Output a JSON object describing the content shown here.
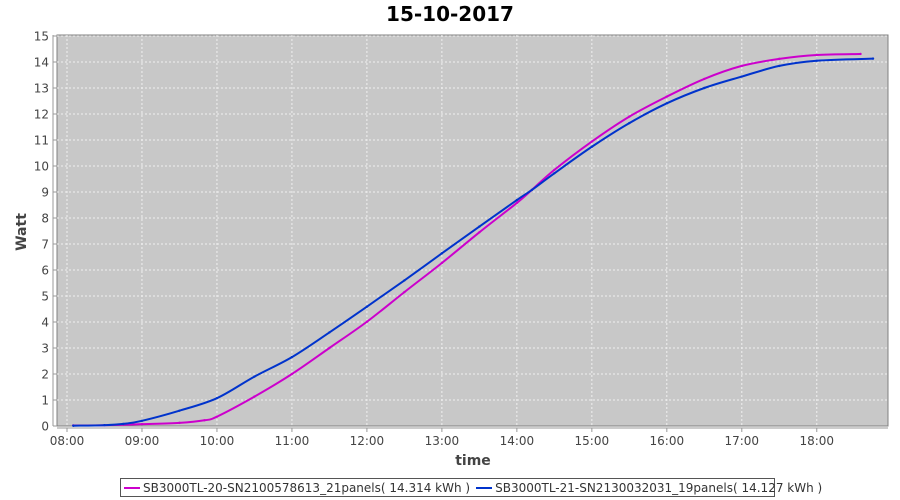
{
  "chart_data": {
    "type": "line",
    "title": "15-10-2017",
    "xlabel": "time",
    "ylabel": "Watt",
    "xlim": [
      "07:52",
      "18:57"
    ],
    "ylim": [
      0,
      15
    ],
    "x_ticks": [
      "08:00",
      "09:00",
      "10:00",
      "11:00",
      "12:00",
      "13:00",
      "14:00",
      "15:00",
      "16:00",
      "17:00",
      "18:00"
    ],
    "y_ticks": [
      0,
      1,
      2,
      3,
      4,
      5,
      6,
      7,
      8,
      9,
      10,
      11,
      12,
      13,
      14,
      15
    ],
    "grid": true,
    "legend_position": "bottom",
    "background": "#c8c8c8",
    "series": [
      {
        "name": "SB3000TL-20-SN2100578613_21panels( 14.314 kWh )",
        "color": "#cc00cc",
        "points": [
          [
            "08:05",
            0.02
          ],
          [
            "08:30",
            0.03
          ],
          [
            "09:00",
            0.07
          ],
          [
            "09:30",
            0.12
          ],
          [
            "09:50",
            0.22
          ],
          [
            "10:00",
            0.36
          ],
          [
            "10:30",
            1.13
          ],
          [
            "11:00",
            2.0
          ],
          [
            "11:30",
            3.0
          ],
          [
            "12:00",
            4.01
          ],
          [
            "12:30",
            5.15
          ],
          [
            "13:00",
            6.27
          ],
          [
            "13:30",
            7.45
          ],
          [
            "14:00",
            8.58
          ],
          [
            "14:12",
            9.08
          ],
          [
            "14:30",
            9.85
          ],
          [
            "15:00",
            10.94
          ],
          [
            "15:30",
            11.9
          ],
          [
            "16:00",
            12.67
          ],
          [
            "16:30",
            13.35
          ],
          [
            "17:00",
            13.85
          ],
          [
            "17:30",
            14.12
          ],
          [
            "18:00",
            14.27
          ],
          [
            "18:35",
            14.31
          ]
        ]
      },
      {
        "name": "SB3000TL-21-SN2130032031_19panels( 14.127 kWh )",
        "color": "#0033cc",
        "points": [
          [
            "08:05",
            0.01
          ],
          [
            "08:30",
            0.03
          ],
          [
            "08:45",
            0.08
          ],
          [
            "09:00",
            0.2
          ],
          [
            "09:30",
            0.59
          ],
          [
            "10:00",
            1.07
          ],
          [
            "10:30",
            1.9
          ],
          [
            "11:00",
            2.65
          ],
          [
            "11:30",
            3.6
          ],
          [
            "12:00",
            4.59
          ],
          [
            "12:30",
            5.6
          ],
          [
            "13:00",
            6.64
          ],
          [
            "13:30",
            7.67
          ],
          [
            "14:00",
            8.69
          ],
          [
            "14:12",
            9.08
          ],
          [
            "14:30",
            9.72
          ],
          [
            "15:00",
            10.74
          ],
          [
            "15:30",
            11.65
          ],
          [
            "16:00",
            12.41
          ],
          [
            "16:30",
            13.0
          ],
          [
            "17:00",
            13.44
          ],
          [
            "17:30",
            13.85
          ],
          [
            "18:00",
            14.05
          ],
          [
            "18:45",
            14.13
          ]
        ]
      }
    ]
  }
}
